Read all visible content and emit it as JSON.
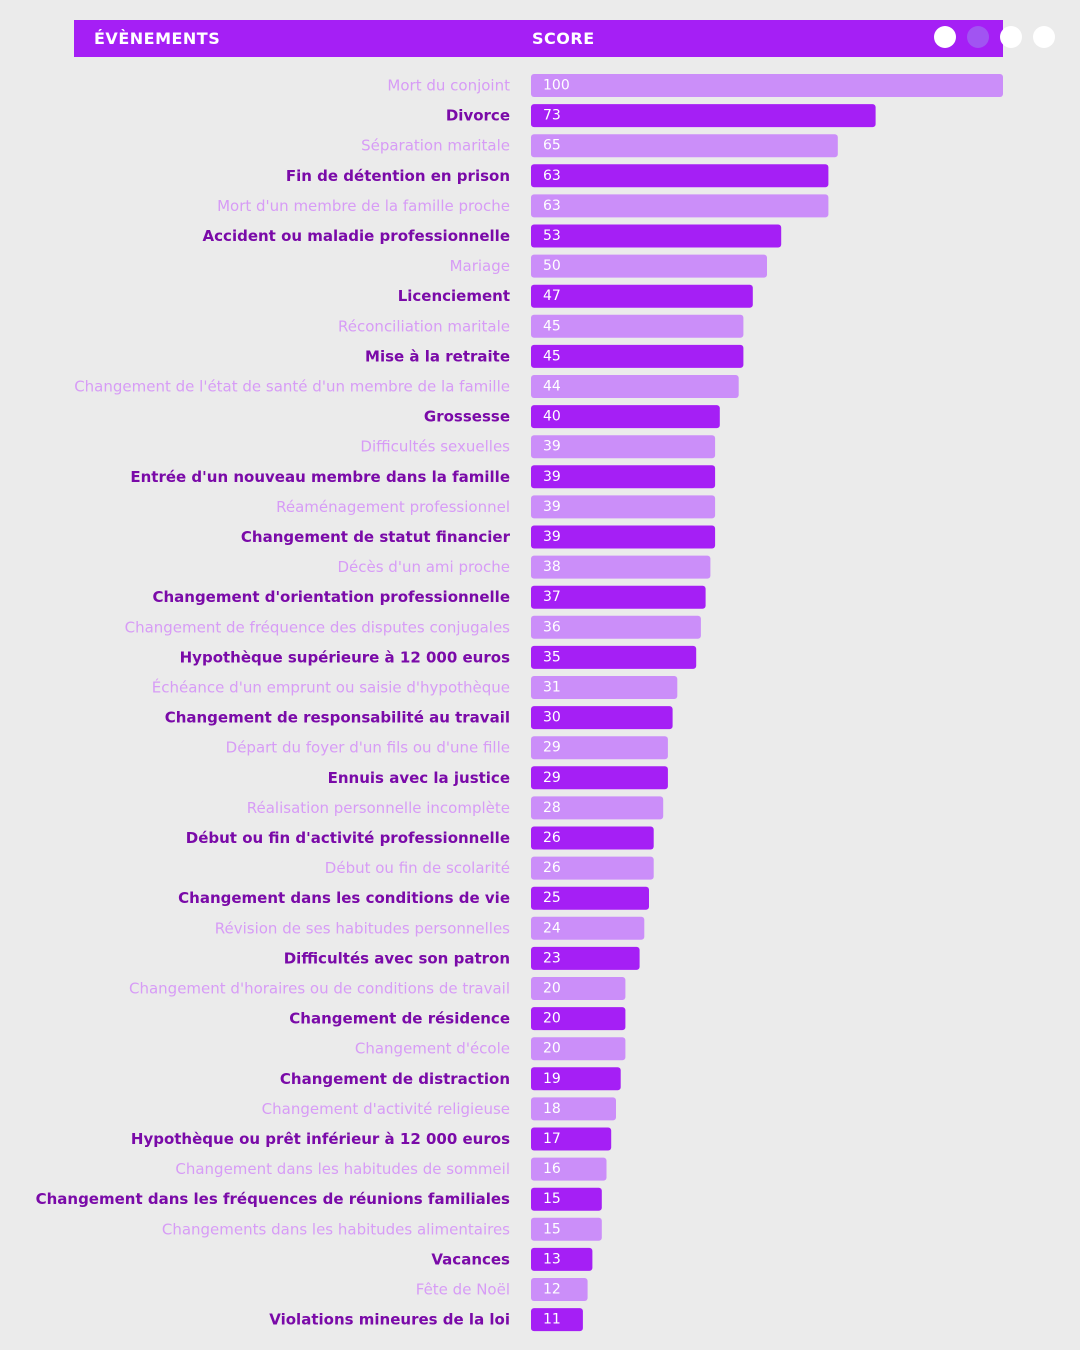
{
  "header": {
    "col_events": "ÉVÈNEMENTS",
    "col_score": "SCORE"
  },
  "pagination": {
    "count": 4,
    "active_index": 1
  },
  "colors": {
    "header_bg": "#a51ff5",
    "bar_dark": "#a51ff5",
    "bar_light": "#cb8ef9",
    "label_dark": "#7a0aa8",
    "label_light": "#d79cf6",
    "background": "#ebebeb",
    "dot_active": "#a154f2",
    "dot_inactive": "#ffffff"
  },
  "chart_data": {
    "type": "bar",
    "orientation": "horizontal",
    "xlim": [
      0,
      100
    ],
    "categories": [
      "Mort du conjoint",
      "Divorce",
      "Séparation maritale",
      "Fin de détention en prison",
      "Mort d'un membre de la famille proche",
      "Accident ou maladie professionnelle",
      "Mariage",
      "Licenciement",
      "Réconciliation maritale",
      "Mise à la retraite",
      "Changement de l'état de santé d'un membre de la famille",
      "Grossesse",
      "Difficultés sexuelles",
      "Entrée d'un nouveau membre dans la famille",
      "Réaménagement professionnel",
      "Changement de statut financier",
      "Décès d'un ami proche",
      "Changement d'orientation professionnelle",
      "Changement de fréquence des disputes conjugales",
      "Hypothèque supérieure à 12 000 euros",
      "Échéance d'un emprunt ou saisie d'hypothèque",
      "Changement de responsabilité au travail",
      "Départ du foyer d'un fils ou d'une fille",
      "Ennuis avec la justice",
      "Réalisation personnelle incomplète",
      "Début ou fin d'activité professionnelle",
      "Début ou fin de scolarité",
      "Changement dans les conditions de vie",
      "Révision de ses habitudes personnelles",
      "Difficultés avec son patron",
      "Changement d'horaires ou de conditions de travail",
      "Changement de résidence",
      "Changement d'école",
      "Changement de distraction",
      "Changement d'activité religieuse",
      "Hypothèque ou prêt inférieur à 12 000 euros",
      "Changement dans les habitudes de sommeil",
      "Changement dans les fréquences de réunions familiales",
      "Changements dans les habitudes alimentaires",
      "Vacances",
      "Fête de Noël",
      "Violations mineures de la loi"
    ],
    "values": [
      100,
      73,
      65,
      63,
      63,
      53,
      50,
      47,
      45,
      45,
      44,
      40,
      39,
      39,
      39,
      39,
      38,
      37,
      36,
      35,
      31,
      30,
      29,
      29,
      28,
      26,
      26,
      25,
      24,
      23,
      20,
      20,
      20,
      19,
      18,
      17,
      16,
      15,
      15,
      13,
      12,
      11
    ]
  }
}
